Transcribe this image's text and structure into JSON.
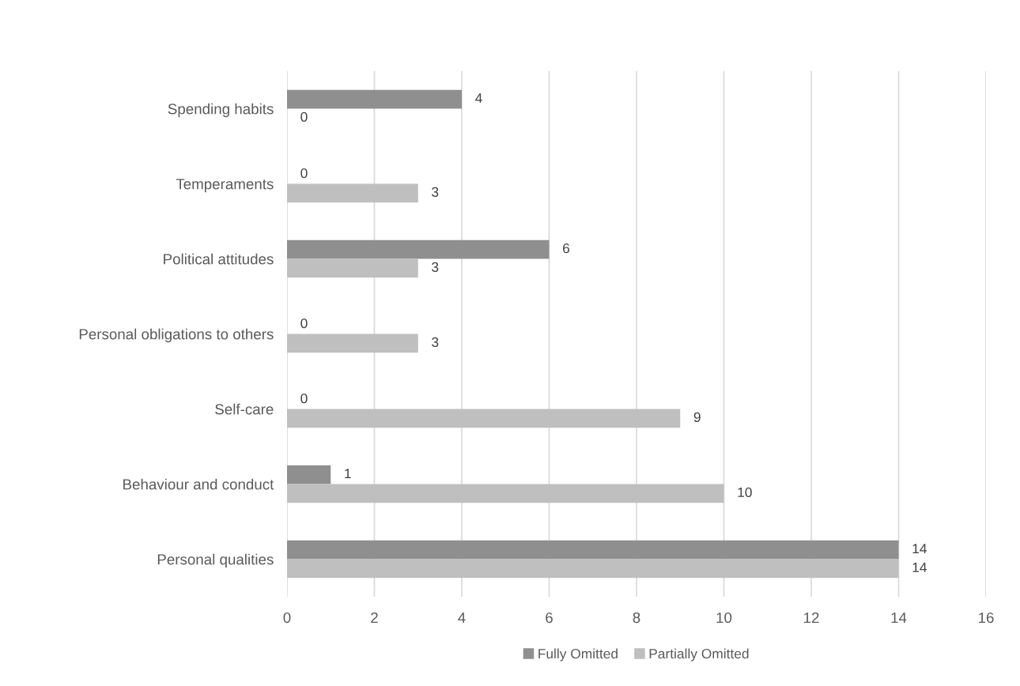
{
  "chart_data": {
    "type": "bar",
    "orientation": "horizontal",
    "categories": [
      "Spending habits",
      "Temperaments",
      "Political attitudes",
      "Personal obligations to others",
      "Self-care",
      "Behaviour and conduct",
      "Personal qualities"
    ],
    "series": [
      {
        "name": "Fully Omitted",
        "color": "#8f8f8f",
        "values": [
          4,
          0,
          6,
          0,
          0,
          1,
          14
        ]
      },
      {
        "name": "Partially Omitted",
        "color": "#bfbfbf",
        "values": [
          0,
          3,
          3,
          3,
          9,
          10,
          14
        ]
      }
    ],
    "xlim": [
      0,
      16
    ],
    "xticks": [
      0,
      2,
      4,
      6,
      8,
      10,
      12,
      14,
      16
    ],
    "grid": "x",
    "legend": "bottom",
    "data_labels": true
  }
}
